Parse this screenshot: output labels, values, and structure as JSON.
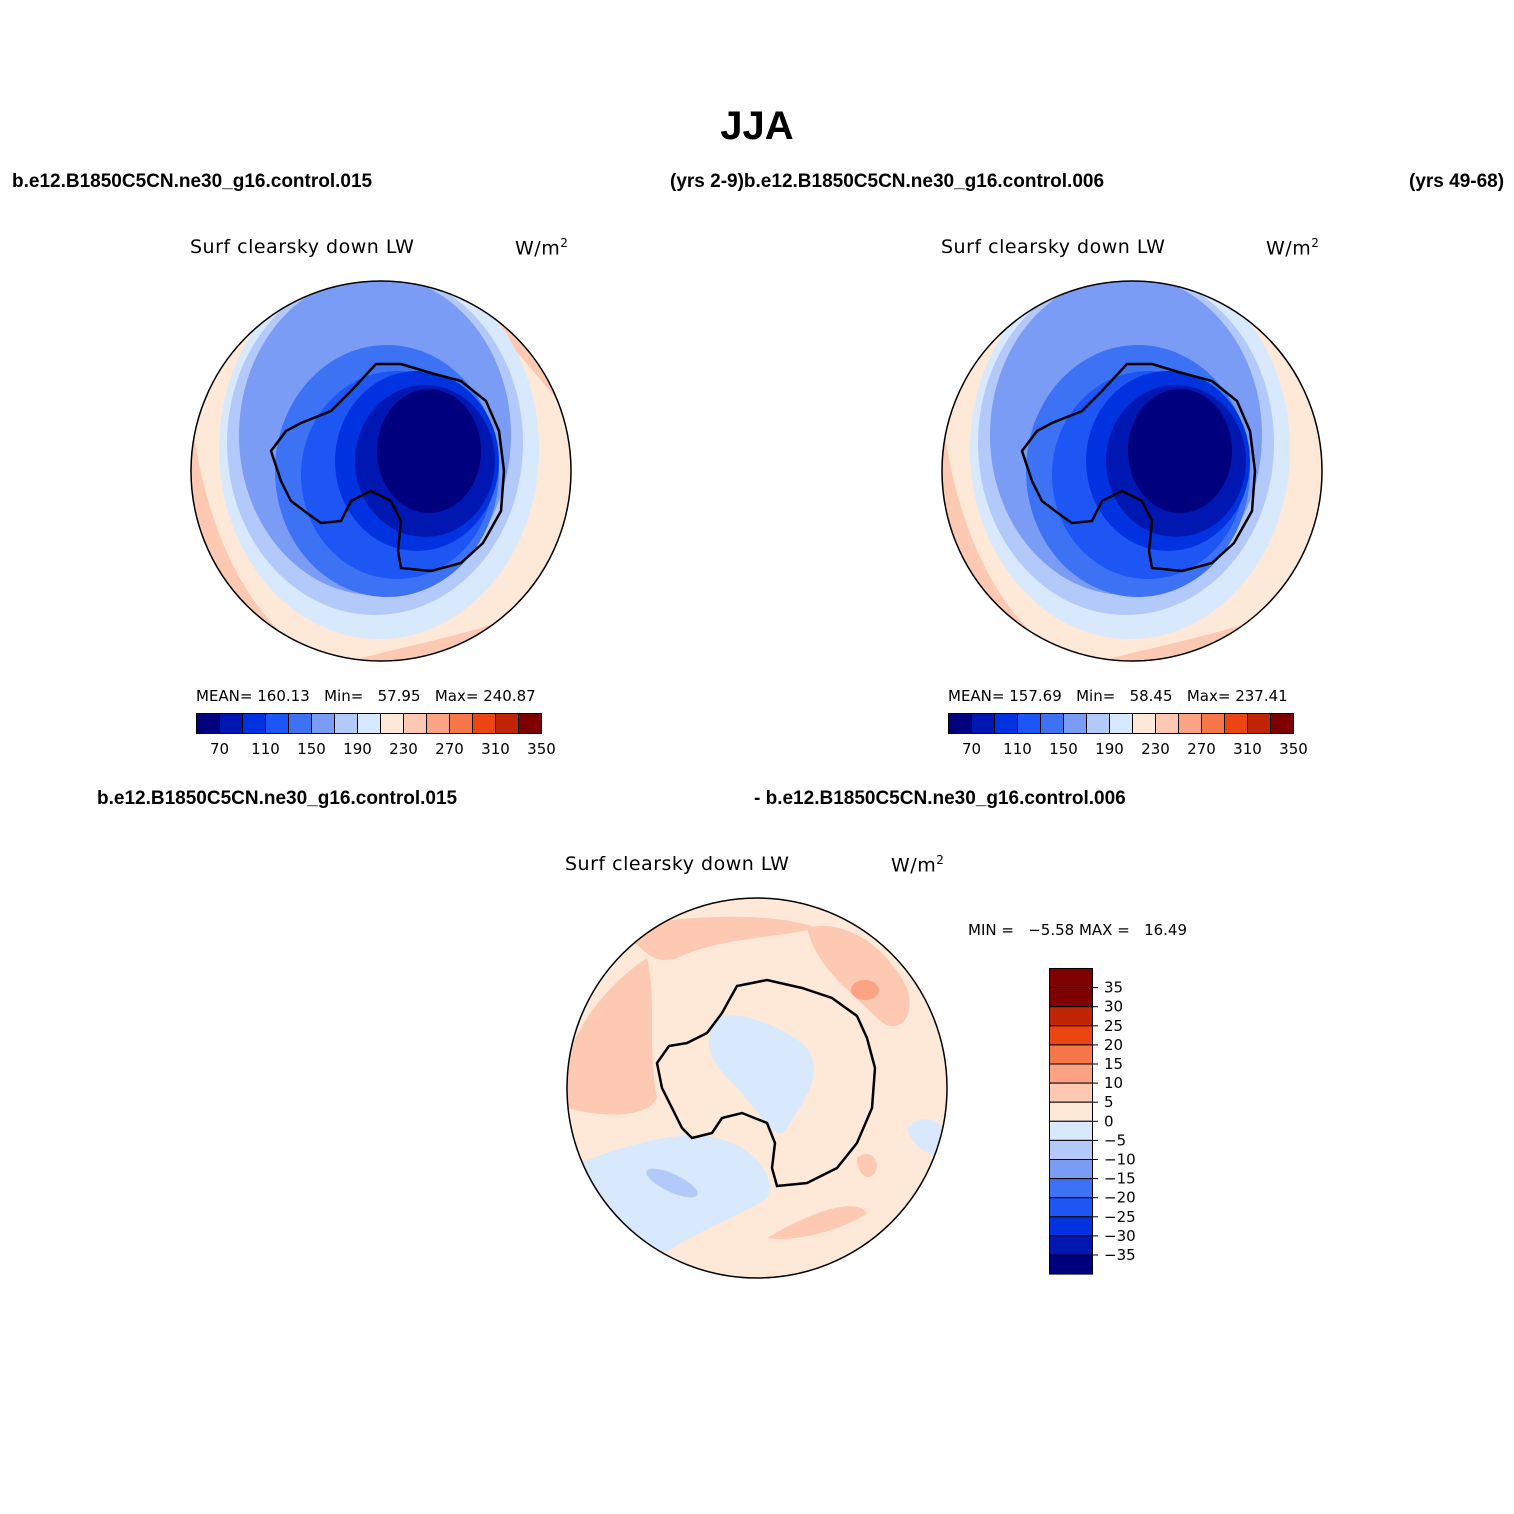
{
  "title": "JJA",
  "header": {
    "case_left": "b.e12.B1850C5CN.ne30_g16.control.015",
    "case_mid": "(yrs 2-9)b.e12.B1850C5CN.ne30_g16.control.006",
    "case_right": "(yrs 49-68)"
  },
  "panels": [
    {
      "title": "Surf clearsky down LW",
      "units": "W/m",
      "units_exp": "2",
      "stats": {
        "mean_label": "MEAN=",
        "mean": "160.13",
        "min_label": "Min=",
        "min": "57.95",
        "max_label": "Max=",
        "max": "240.87"
      },
      "colorbar_labels": [
        "70",
        "110",
        "150",
        "190",
        "230",
        "270",
        "310",
        "350"
      ]
    },
    {
      "title": "Surf clearsky down LW",
      "units": "W/m",
      "units_exp": "2",
      "stats": {
        "mean_label": "MEAN=",
        "mean": "157.69",
        "min_label": "Min=",
        "min": "58.45",
        "max_label": "Max=",
        "max": "237.41"
      },
      "colorbar_labels": [
        "70",
        "110",
        "150",
        "190",
        "230",
        "270",
        "310",
        "350"
      ]
    }
  ],
  "diff": {
    "case_left": "b.e12.B1850C5CN.ne30_g16.control.015",
    "case_right": "- b.e12.B1850C5CN.ne30_g16.control.006",
    "title": "Surf clearsky down LW",
    "units": "W/m",
    "units_exp": "2",
    "minmax": "MIN =   −5.58 MAX =   16.49",
    "colorbar_labels": [
      "35",
      "30",
      "25",
      "20",
      "15",
      "10",
      "5",
      "0",
      "−5",
      "−10",
      "−15",
      "−20",
      "−25",
      "−30",
      "−35"
    ]
  },
  "colors": {
    "abs_scale": [
      "#00007f",
      "#0017b2",
      "#0032e0",
      "#1e56f5",
      "#3e72f5",
      "#7a9cf5",
      "#b3c9fa",
      "#d8e8fd",
      "#fee9d9",
      "#fdc9b2",
      "#fba382",
      "#f87748",
      "#ea4512",
      "#bf2505",
      "#7f0000"
    ],
    "diff_scale": [
      "#00007f",
      "#0017b2",
      "#0032e0",
      "#1e56f5",
      "#3e72f5",
      "#7a9cf5",
      "#b3c9fa",
      "#d8e8fd",
      "#fee9d9",
      "#fdc9b2",
      "#fba382",
      "#f87748",
      "#ea4512",
      "#bf2505",
      "#7f0000"
    ]
  }
}
